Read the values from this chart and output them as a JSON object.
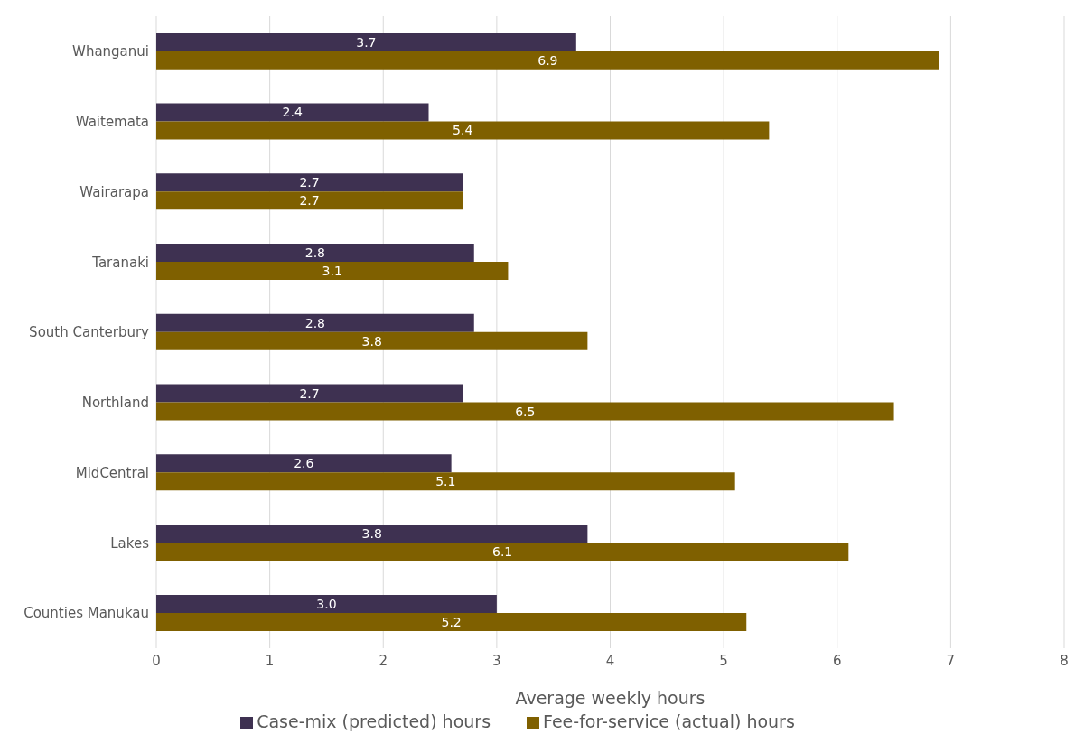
{
  "chart_data": {
    "type": "bar",
    "orientation": "horizontal",
    "xlabel": "Average weekly hours",
    "categories": [
      "Whanganui",
      "Waitemata",
      "Wairarapa",
      "Taranaki",
      "South Canterbury",
      "Northland",
      "MidCentral",
      "Lakes",
      "Counties Manukau"
    ],
    "series": [
      {
        "name": "Case-mix (predicted) hours",
        "color": "#3e3151",
        "values": [
          3.7,
          2.4,
          2.7,
          2.8,
          2.8,
          2.7,
          2.6,
          3.8,
          3.0
        ],
        "value_labels": [
          "3.7",
          "2.4",
          "2.7",
          "2.8",
          "2.8",
          "2.7",
          "2.6",
          "3.8",
          "3.0"
        ]
      },
      {
        "name": "Fee-for-service (actual) hours",
        "color": "#7f6000",
        "values": [
          6.9,
          5.4,
          2.7,
          3.1,
          3.8,
          6.5,
          5.1,
          6.1,
          5.2
        ],
        "value_labels": [
          "6.9",
          "5.4",
          "2.7",
          "3.1",
          "3.8",
          "6.5",
          "5.1",
          "6.1",
          "5.2"
        ]
      }
    ],
    "xlim": [
      0,
      8
    ],
    "xticks": [
      0,
      1,
      2,
      3,
      4,
      5,
      6,
      7,
      8
    ],
    "grid": "x",
    "legend": "bottom"
  }
}
